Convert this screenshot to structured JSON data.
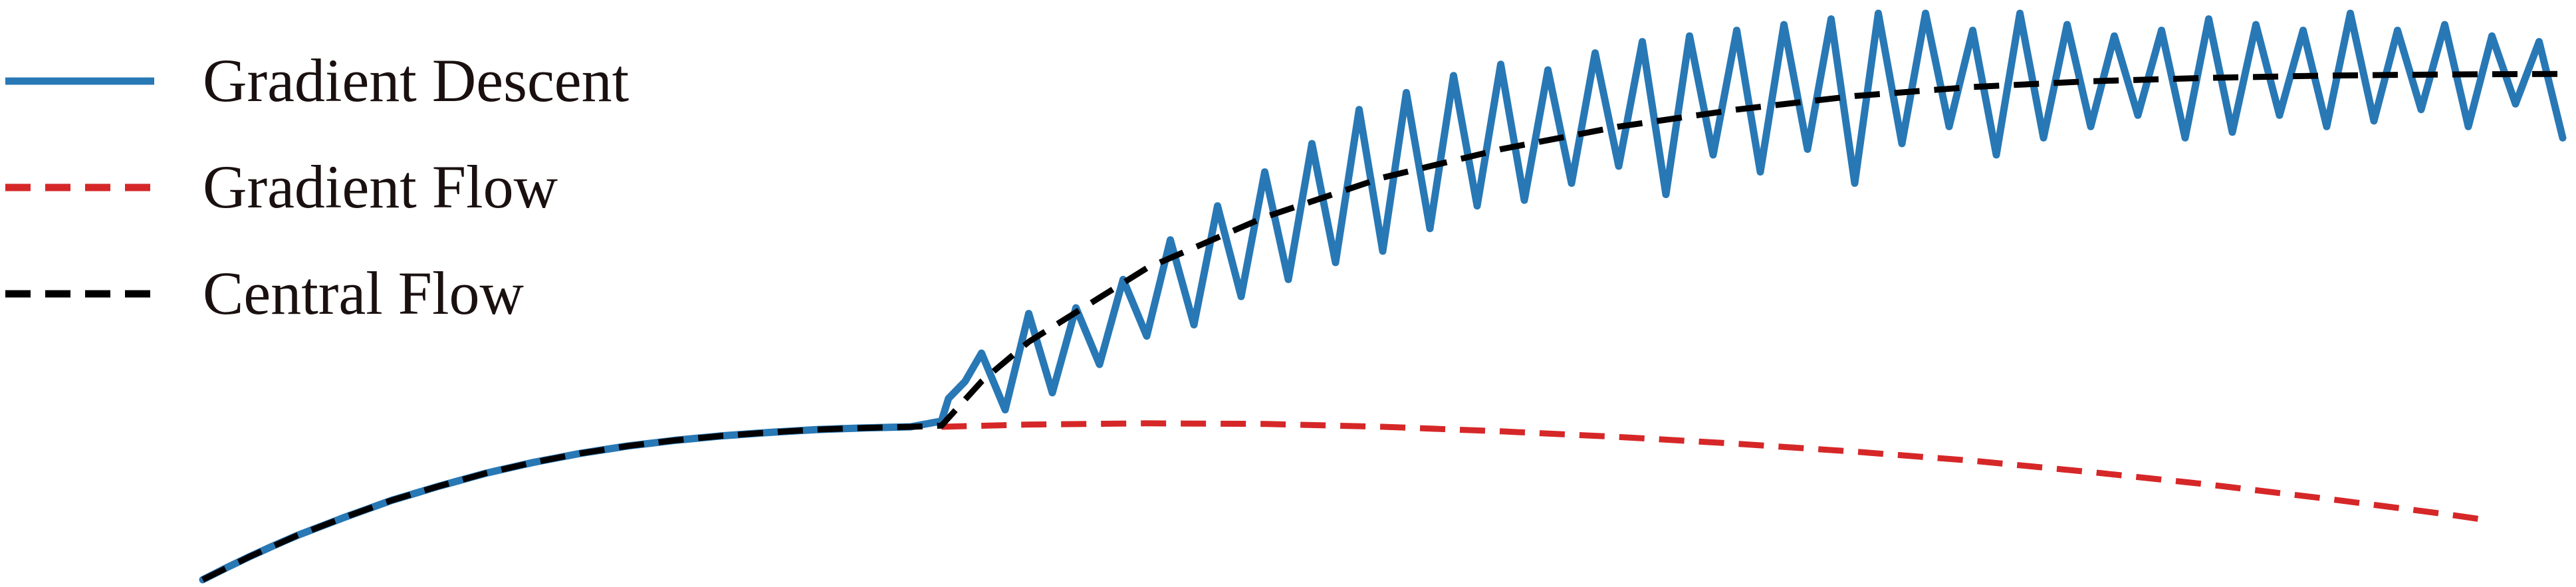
{
  "chart_data": {
    "type": "line",
    "title": "",
    "xlabel": "",
    "ylabel": "",
    "axes_visible": false,
    "grid": false,
    "legend_position": "top-left",
    "legend": [
      {
        "label": "Gradient Descent",
        "color": "#2878b5",
        "style": "solid"
      },
      {
        "label": "Gradient Flow",
        "color": "#d62728",
        "style": "dashed"
      },
      {
        "label": "Central Flow",
        "color": "#000000",
        "style": "dashed"
      }
    ],
    "series": [
      {
        "name": "Gradient Descent",
        "color": "#2878b5",
        "style": "solid",
        "x": [
          0,
          0.01,
          0.02,
          0.03,
          0.04,
          0.06,
          0.08,
          0.1,
          0.12,
          0.14,
          0.16,
          0.18,
          0.2,
          0.22,
          0.24,
          0.26,
          0.28,
          0.3,
          0.313,
          0.316,
          0.323,
          0.33,
          0.34,
          0.35,
          0.36,
          0.37,
          0.38,
          0.39,
          0.4,
          0.41,
          0.42,
          0.43,
          0.44,
          0.45,
          0.46,
          0.47,
          0.48,
          0.49,
          0.5,
          0.51,
          0.52,
          0.53,
          0.54,
          0.55,
          0.56,
          0.57,
          0.58,
          0.59,
          0.6,
          0.61,
          0.62,
          0.63,
          0.64,
          0.65,
          0.66,
          0.67,
          0.68,
          0.69,
          0.7,
          0.71,
          0.72,
          0.73,
          0.74,
          0.75,
          0.76,
          0.77,
          0.78,
          0.79,
          0.8,
          0.81,
          0.82,
          0.83,
          0.84,
          0.85,
          0.86,
          0.87,
          0.88,
          0.89,
          0.9,
          0.91,
          0.92,
          0.93,
          0.94,
          0.95,
          0.96,
          0.97,
          0.98,
          0.99,
          1.0
        ],
        "y": [
          0,
          0.021,
          0.041,
          0.06,
          0.078,
          0.11,
          0.14,
          0.165,
          0.188,
          0.207,
          0.223,
          0.236,
          0.246,
          0.254,
          0.26,
          0.265,
          0.268,
          0.27,
          0.28,
          0.32,
          0.35,
          0.4,
          0.3,
          0.47,
          0.33,
          0.48,
          0.38,
          0.53,
          0.43,
          0.6,
          0.45,
          0.66,
          0.5,
          0.72,
          0.53,
          0.77,
          0.56,
          0.83,
          0.58,
          0.86,
          0.62,
          0.89,
          0.66,
          0.91,
          0.67,
          0.9,
          0.7,
          0.93,
          0.73,
          0.95,
          0.68,
          0.96,
          0.75,
          0.97,
          0.72,
          0.98,
          0.76,
          0.99,
          0.7,
          1.0,
          0.77,
          1.0,
          0.8,
          0.97,
          0.75,
          1.0,
          0.78,
          0.98,
          0.8,
          0.96,
          0.82,
          0.97,
          0.78,
          0.99,
          0.79,
          0.98,
          0.82,
          0.97,
          0.8,
          1.0,
          0.81,
          0.97,
          0.83,
          0.98,
          0.8,
          0.96,
          0.84,
          0.95,
          0.78
        ]
      },
      {
        "name": "Gradient Flow",
        "color": "#d62728",
        "style": "dashed",
        "x": [
          0.313,
          0.35,
          0.4,
          0.45,
          0.5,
          0.55,
          0.6,
          0.65,
          0.7,
          0.75,
          0.8,
          0.85,
          0.9,
          0.95,
          0.97
        ],
        "y": [
          0.27,
          0.274,
          0.276,
          0.275,
          0.27,
          0.262,
          0.252,
          0.24,
          0.226,
          0.21,
          0.19,
          0.168,
          0.143,
          0.116,
          0.104
        ]
      },
      {
        "name": "Central Flow",
        "color": "#000000",
        "style": "dashed",
        "x": [
          0,
          0.02,
          0.04,
          0.06,
          0.08,
          0.1,
          0.12,
          0.14,
          0.16,
          0.18,
          0.2,
          0.22,
          0.24,
          0.26,
          0.28,
          0.3,
          0.313,
          0.33,
          0.35,
          0.4,
          0.45,
          0.5,
          0.55,
          0.6,
          0.65,
          0.7,
          0.75,
          0.8,
          0.85,
          0.9,
          0.95,
          1.0
        ],
        "y": [
          0,
          0.041,
          0.078,
          0.11,
          0.14,
          0.165,
          0.188,
          0.207,
          0.223,
          0.236,
          0.246,
          0.254,
          0.26,
          0.265,
          0.268,
          0.27,
          0.272,
          0.35,
          0.42,
          0.55,
          0.64,
          0.71,
          0.76,
          0.8,
          0.83,
          0.854,
          0.87,
          0.88,
          0.886,
          0.89,
          0.892,
          0.893
        ]
      }
    ]
  }
}
